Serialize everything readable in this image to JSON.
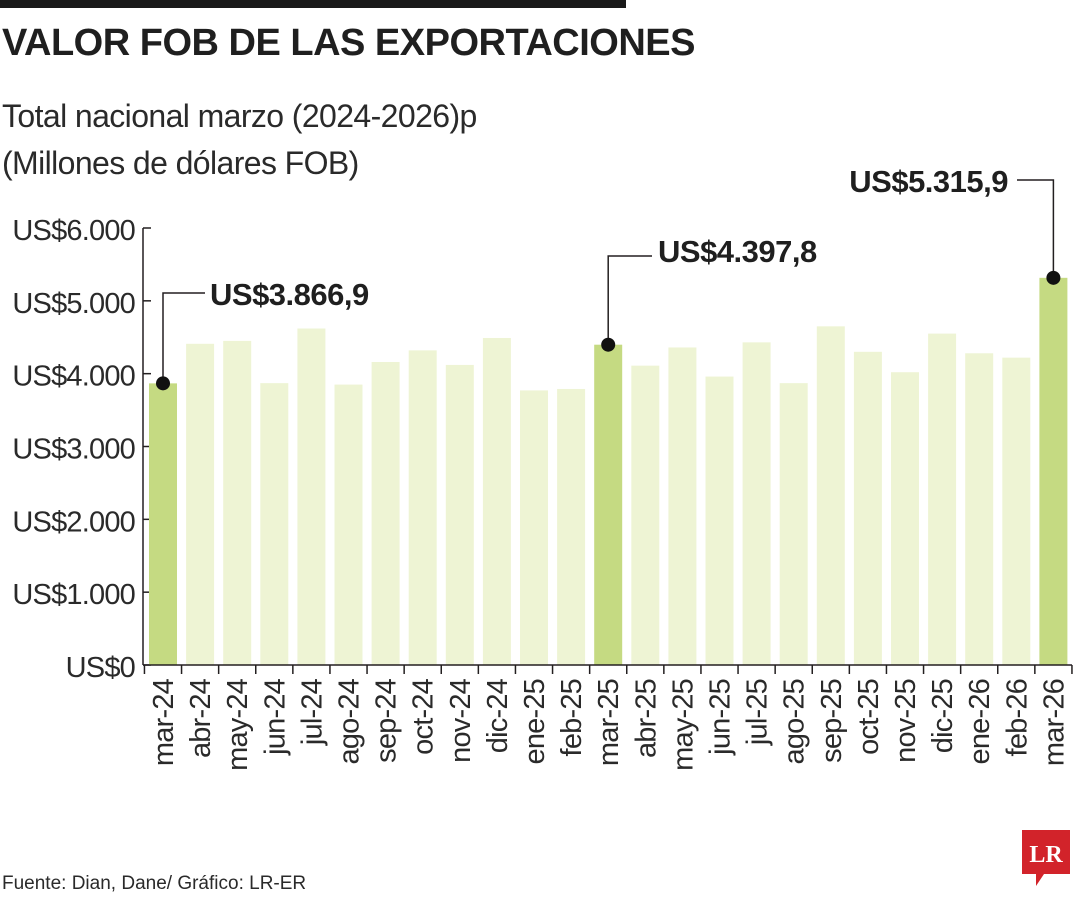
{
  "header": {
    "title": "VALOR FOB DE LAS EXPORTACIONES",
    "subtitle_line1": "Total nacional marzo (2024-2026)p",
    "subtitle_line2": "(Millones de dólares FOB)"
  },
  "footer": {
    "source": "Fuente: Dian, Dane/ Gráfico: LR-ER",
    "logo_text": "LR"
  },
  "colors": {
    "highlight": "#c5da82",
    "base": "#eef4d4",
    "text": "#231f20",
    "brand_red": "#d2232a"
  },
  "chart_data": {
    "type": "bar",
    "categories": [
      "mar-24",
      "abr-24",
      "may-24",
      "jun-24",
      "jul-24",
      "ago-24",
      "sep-24",
      "oct-24",
      "nov-24",
      "dic-24",
      "ene-25",
      "feb-25",
      "mar-25",
      "abr-25",
      "may-25",
      "jun-25",
      "jul-25",
      "ago-25",
      "sep-25",
      "oct-25",
      "nov-25",
      "dic-25",
      "ene-26",
      "feb-26",
      "mar-26"
    ],
    "values": [
      3866.9,
      4410,
      4450,
      3870,
      4620,
      3850,
      4160,
      4320,
      4120,
      4490,
      3770,
      3790,
      4397.8,
      4110,
      4360,
      3960,
      4430,
      3870,
      4650,
      4300,
      4020,
      4550,
      4280,
      4220,
      5315.9
    ],
    "highlighted": [
      "mar-24",
      "mar-25",
      "mar-26"
    ],
    "annotations": [
      {
        "category": "mar-24",
        "label": "US$3.866,9"
      },
      {
        "category": "mar-25",
        "label": "US$4.397,8"
      },
      {
        "category": "mar-26",
        "label": "US$5.315,9"
      }
    ],
    "yticks": [
      0,
      1000,
      2000,
      3000,
      4000,
      5000,
      6000
    ],
    "ytick_labels": [
      "US$0",
      "US$1.000",
      "US$2.000",
      "US$3.000",
      "US$4.000",
      "US$5.000",
      "US$6.000"
    ],
    "ylim": [
      0,
      6000
    ],
    "grid": false,
    "xlabel": "",
    "ylabel": ""
  }
}
